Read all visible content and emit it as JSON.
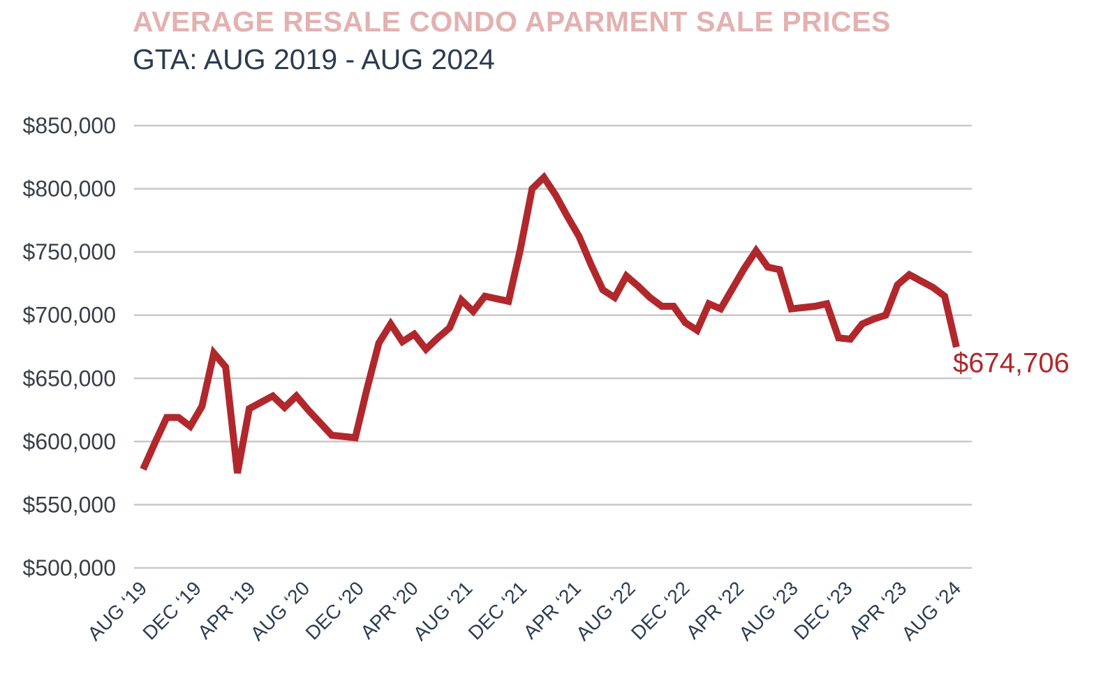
{
  "chart_data": {
    "type": "line",
    "title": "AVERAGE RESALE CONDO APARMENT SALE PRICES",
    "subtitle": "GTA: AUG 2019 - AUG 2024",
    "xlabel": "",
    "ylabel": "",
    "ylim": [
      500000,
      850000
    ],
    "yticks": [
      500000,
      550000,
      600000,
      650000,
      700000,
      750000,
      800000,
      850000
    ],
    "ytick_labels": [
      "$500,000",
      "$550,000",
      "$600,000",
      "$650,000",
      "$700,000",
      "$750,000",
      "$800,000",
      "$850,000"
    ],
    "xtick_labels": [
      "AUG '19",
      "DEC '19",
      "APR '19",
      "AUG '20",
      "DEC '20",
      "APR '20",
      "AUG '21",
      "DEC '21",
      "APR '21",
      "AUG '22",
      "DEC '22",
      "APR '22",
      "AUG '23",
      "DEC '23",
      "APR '23",
      "AUG '24"
    ],
    "grid": true,
    "legend": "none",
    "line_color": "#b1282c",
    "end_label": "$674,706",
    "series": [
      {
        "values": [
          578000,
          599000,
          619000,
          619000,
          612000,
          628000,
          670000,
          659000,
          575000,
          626000,
          631000,
          636000,
          627000,
          636000,
          625000,
          615000,
          605000,
          604000,
          603000,
          642000,
          678000,
          693000,
          679000,
          685000,
          673000,
          682000,
          690000,
          712000,
          703000,
          715000,
          713000,
          711000,
          752000,
          800000,
          809000,
          795000,
          778000,
          762000,
          740000,
          720000,
          714000,
          731000,
          723000,
          714000,
          707000,
          707000,
          694000,
          688000,
          709000,
          705000,
          721000,
          737000,
          751000,
          738000,
          736000,
          705000,
          706000,
          707000,
          709000,
          682000,
          681000,
          693000,
          697000,
          700000,
          724000,
          732000,
          727000,
          722000,
          715000,
          674706
        ]
      }
    ]
  }
}
